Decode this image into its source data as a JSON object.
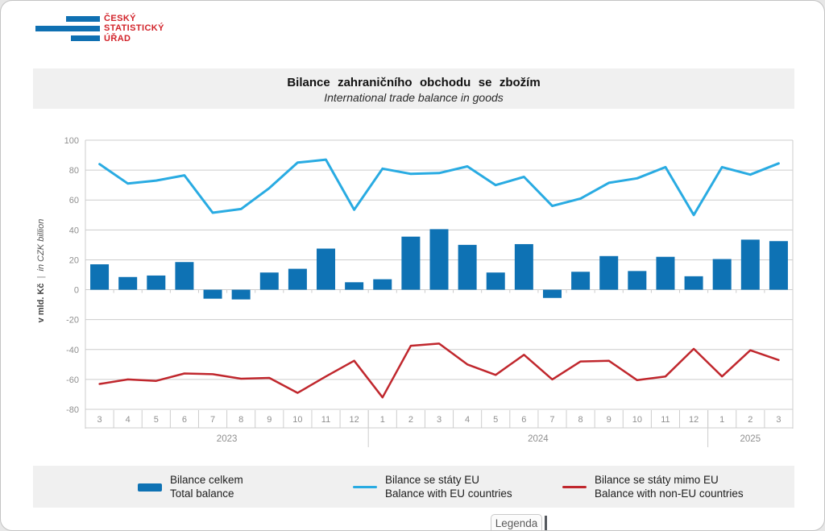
{
  "logo": {
    "line1": "ČESKÝ",
    "line2": "STATISTICKÝ",
    "line3": "ÚŘAD"
  },
  "footer": {
    "legend_button": "Legenda"
  },
  "chart_data": {
    "type": "bar+line",
    "title": "Bilance zahraničního obchodu se zbožím",
    "subtitle": "International trade balance in goods",
    "y_axis": {
      "label_cs": "v mld. Kč",
      "separator": "|",
      "label_en": "in CZK billion",
      "ticks": [
        100,
        80,
        60,
        40,
        20,
        0,
        -20,
        -40,
        -60,
        -80
      ]
    },
    "ylim": [
      -80,
      100
    ],
    "grid": true,
    "legend_position": "bottom",
    "categories": [
      "3",
      "4",
      "5",
      "6",
      "7",
      "8",
      "9",
      "10",
      "11",
      "12",
      "1",
      "2",
      "3",
      "4",
      "5",
      "6",
      "7",
      "8",
      "9",
      "10",
      "11",
      "12",
      "1",
      "2",
      "3"
    ],
    "year_groups": [
      {
        "label": "2023",
        "count": 10
      },
      {
        "label": "2024",
        "count": 12
      },
      {
        "label": "2025",
        "count": 3
      }
    ],
    "series": [
      {
        "key": "total",
        "type": "bar",
        "name": "Bilance celkem",
        "name_en": "Total balance",
        "color": "#0e72b4",
        "values": [
          17,
          8.5,
          9.5,
          18.5,
          -6,
          -6.5,
          11.5,
          14,
          27.5,
          5,
          7,
          35.5,
          40.5,
          30,
          11.5,
          30.5,
          -5.5,
          12,
          22.5,
          12.5,
          22,
          9,
          20.5,
          33.5,
          32.5
        ]
      },
      {
        "key": "eu",
        "type": "line",
        "name": "Bilance se státy EU",
        "name_en": "Balance with EU countries",
        "color": "#29abe2",
        "values": [
          84,
          71,
          73,
          76.5,
          51.5,
          54,
          68,
          85,
          87,
          53.5,
          81,
          77.5,
          78,
          82.5,
          70,
          75.5,
          56,
          61,
          71.5,
          74.5,
          82,
          50,
          82,
          77,
          84.5
        ]
      },
      {
        "key": "non_eu",
        "type": "line",
        "name": "Bilance se státy mimo EU",
        "name_en": "Balance with non-EU countries",
        "color": "#c0272d",
        "values": [
          -63,
          -60,
          -61,
          -56,
          -56.5,
          -59.5,
          -59,
          -69,
          -58,
          -47.5,
          -72,
          -37.5,
          -36,
          -50,
          -57,
          -43.5,
          -60,
          -48,
          -47.5,
          -60.5,
          -58,
          -39.5,
          -58,
          -40.5,
          -47
        ]
      }
    ]
  }
}
